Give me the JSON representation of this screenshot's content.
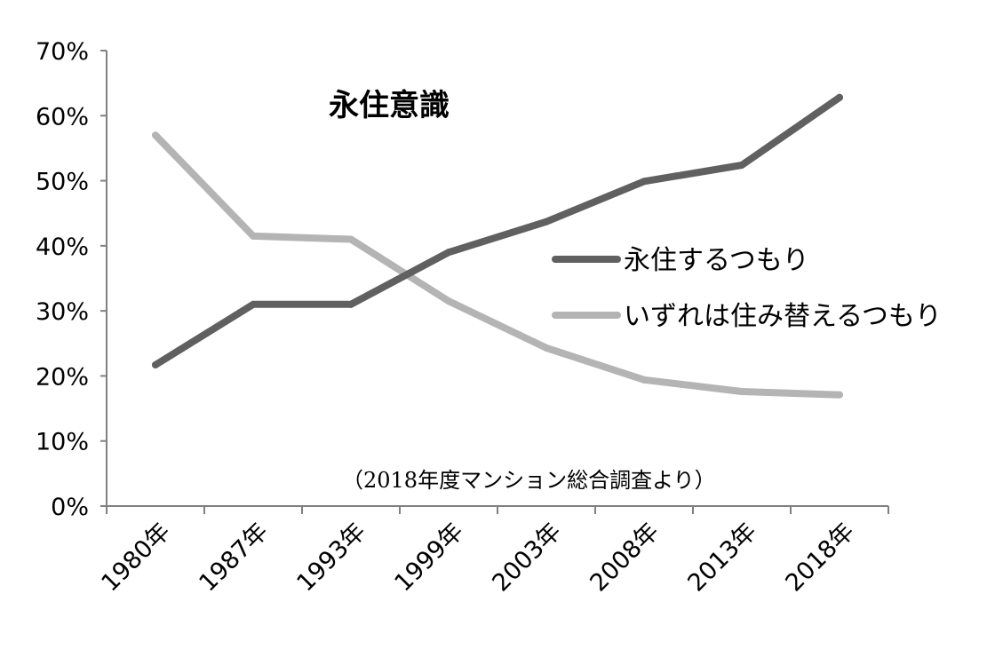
{
  "chart_data": {
    "type": "line",
    "title": "永住意識",
    "annotation": "（2018年度マンション総合調査より）",
    "categories": [
      "1980年",
      "1987年",
      "1993年",
      "1999年",
      "2003年",
      "2008年",
      "2013年",
      "2018年"
    ],
    "series": [
      {
        "name": "永住するつもり",
        "values": [
          21.7,
          31.0,
          31.0,
          39.0,
          43.7,
          49.9,
          52.4,
          62.8
        ],
        "color": "#606060"
      },
      {
        "name": "いずれは住み替えるつもり",
        "values": [
          57.0,
          41.5,
          41.0,
          31.5,
          24.3,
          19.4,
          17.6,
          17.1
        ],
        "color": "#b4b4b4"
      }
    ],
    "ylim": [
      0,
      70
    ],
    "yticks": [
      "0%",
      "10%",
      "20%",
      "30%",
      "40%",
      "50%",
      "60%",
      "70%"
    ],
    "grid": false,
    "legend": "right"
  }
}
